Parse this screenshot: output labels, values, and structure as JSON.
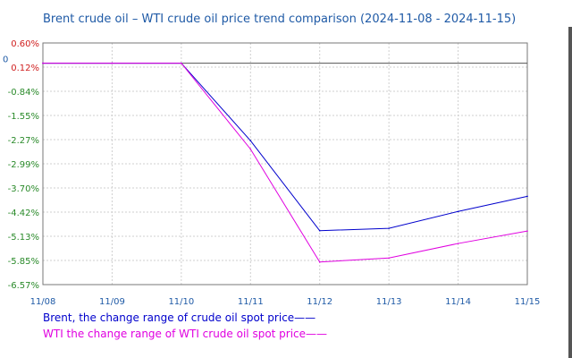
{
  "chart_data": {
    "type": "line",
    "title": "Brent crude oil – WTI crude oil price trend comparison (2024-11-08 - 2024-11-15)",
    "categories": [
      "11/08",
      "11/09",
      "11/10",
      "11/11",
      "11/12",
      "11/13",
      "11/14",
      "11/15"
    ],
    "y_ticks": [
      "0.60%",
      "0.12%",
      "-0.84%",
      "-1.55%",
      "-2.27%",
      "-2.99%",
      "-3.70%",
      "-4.42%",
      "-5.13%",
      "-5.85%",
      "-6.57%"
    ],
    "zero_label": "0",
    "ylim": [
      -6.57,
      0.6
    ],
    "grid": true,
    "legend_position": "bottom-left",
    "series": [
      {
        "name": "Brent, the change range of crude oil spot price",
        "color": "#0000cc",
        "values": [
          0,
          0,
          0,
          -2.3,
          -4.97,
          -4.9,
          -4.4,
          -3.95
        ]
      },
      {
        "name": "WTI the change range of WTI crude oil spot price",
        "color": "#e000e0",
        "values": [
          0,
          0,
          0,
          -2.55,
          -5.9,
          -5.78,
          -5.35,
          -4.98
        ]
      }
    ],
    "legend_line": "——"
  }
}
